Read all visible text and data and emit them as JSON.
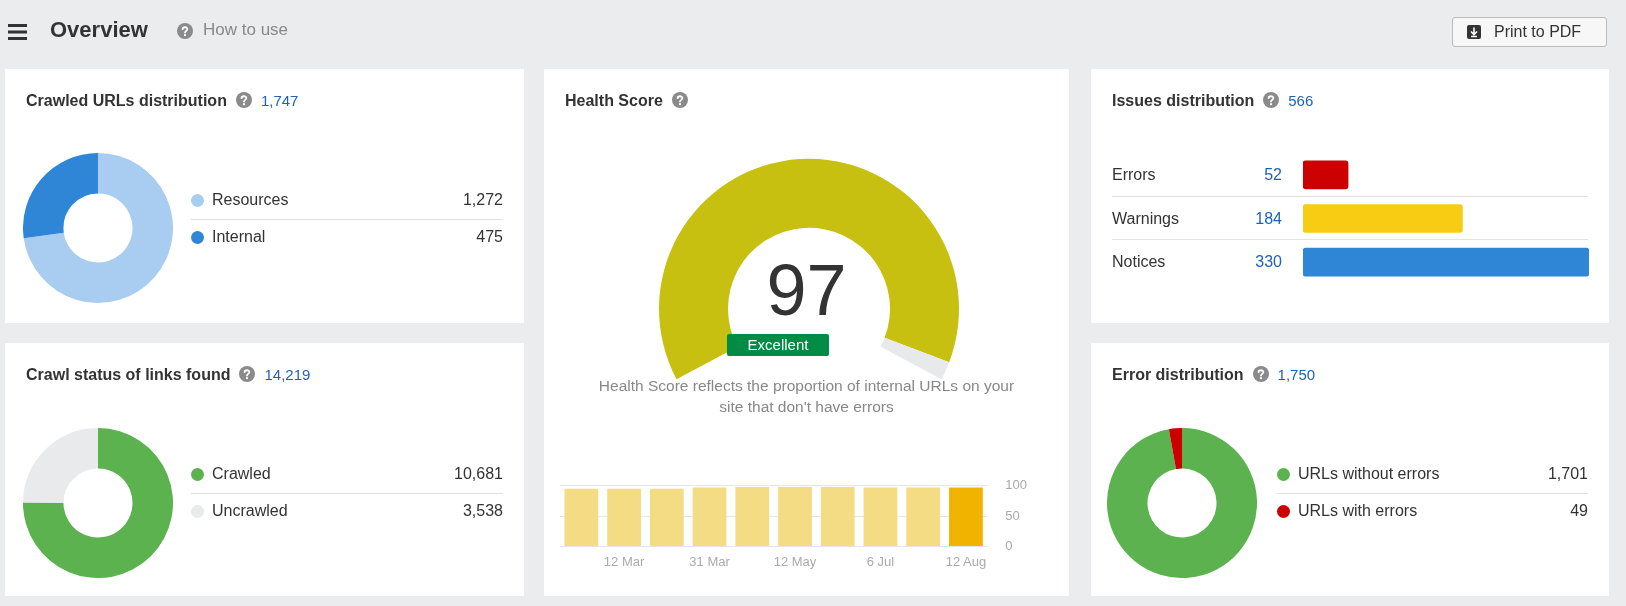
{
  "chart_data": [
    {
      "type": "other",
      "title": "Overview",
      "annotations": [
        "How to use",
        "Print to PDF"
      ]
    },
    {
      "type": "donut",
      "title": "Crawled URLs distribution",
      "subtitle": "1,747",
      "categories": [
        "Resources",
        "Internal"
      ],
      "values": [
        1272,
        475
      ],
      "value_labels": [
        "1,272",
        "475"
      ],
      "colors": [
        "#a9cdf0",
        "#2f86d6"
      ],
      "legend": "right"
    },
    {
      "type": "donut",
      "title": "Health Score",
      "categories": [
        null,
        null
      ],
      "values": [
        97,
        3
      ],
      "colors": [
        "#c8c010",
        "#e8e9eb"
      ],
      "annotations": [
        "97",
        "Excellent",
        "Health Score reflects the proportion of internal URLs on your site that don't have errors"
      ]
    },
    {
      "type": "bar",
      "categories": [
        null,
        "12 Mar",
        null,
        "31 Mar",
        null,
        "12 May",
        null,
        "6 Jul",
        null,
        "12 Aug"
      ],
      "values": [
        95,
        95,
        95,
        97,
        98,
        98,
        98,
        97,
        97,
        97
      ],
      "colors": [
        "#f3dc84",
        "#f3dc84",
        "#f3dc84",
        "#f3dc84",
        "#f3dc84",
        "#f3dc84",
        "#f3dc84",
        "#f3dc84",
        "#f3dc84",
        "#f0b400"
      ],
      "ylim": [
        0,
        100
      ],
      "yticks": [
        0,
        50,
        100
      ],
      "grid": "y"
    },
    {
      "type": "bar",
      "orientation": "horizontal",
      "title": "Issues distribution",
      "subtitle": "566",
      "categories": [
        "Errors",
        "Warnings",
        "Notices"
      ],
      "values": [
        52,
        184,
        330
      ],
      "value_labels": [
        "52",
        "184",
        "330"
      ],
      "colors": [
        "#cc0000",
        "#f9cc14",
        "#2f86d6"
      ]
    },
    {
      "type": "donut",
      "title": "Crawl status of links found",
      "subtitle": "14,219",
      "categories": [
        "Crawled",
        "Uncrawled"
      ],
      "values": [
        10681,
        3538
      ],
      "value_labels": [
        "10,681",
        "3,538"
      ],
      "colors": [
        "#5bb24f",
        "#e9eaec"
      ],
      "legend": "right"
    },
    {
      "type": "donut",
      "title": "Error distribution",
      "subtitle": "1,750",
      "categories": [
        "URLs without errors",
        "URLs with errors"
      ],
      "values": [
        1701,
        49
      ],
      "value_labels": [
        "1,701",
        "49"
      ],
      "colors": [
        "#5bb24f",
        "#cc0000"
      ],
      "legend": "right"
    }
  ]
}
